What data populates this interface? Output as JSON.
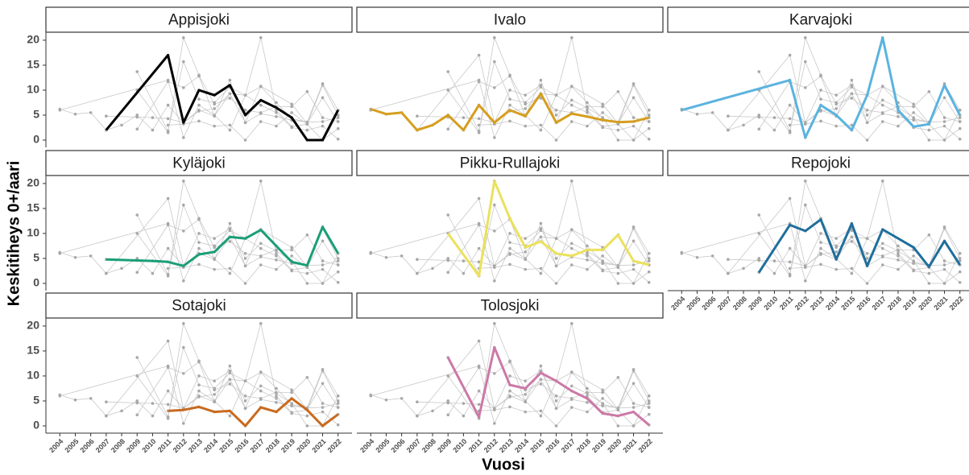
{
  "chart_data": {
    "type": "line",
    "xlabel": "Vuosi",
    "ylabel": "Keskitiheys 0+/aari",
    "xlim": [
      2003.1,
      2022.9
    ],
    "ylim": [
      -1.45,
      21.6
    ],
    "xticks": [
      2004,
      2005,
      2006,
      2007,
      2008,
      2009,
      2010,
      2011,
      2012,
      2013,
      2014,
      2015,
      2016,
      2017,
      2018,
      2019,
      2020,
      2021,
      2022
    ],
    "yticks": [
      0,
      5,
      10,
      15,
      20
    ],
    "context_color": "#c8c8c8",
    "series": [
      {
        "name": "Appisjoki",
        "color": "#000000",
        "x": [
          2007,
          2011,
          2012,
          2013,
          2014,
          2015,
          2016,
          2017,
          2018,
          2019,
          2020,
          2021,
          2022
        ],
        "values": [
          2,
          17,
          3.5,
          10,
          9,
          11,
          5,
          8,
          6.5,
          4.5,
          0,
          0,
          6
        ]
      },
      {
        "name": "Ivalo",
        "color": "#d69e1e",
        "x": [
          2004,
          2005,
          2006,
          2007,
          2008,
          2009,
          2010,
          2011,
          2012,
          2013,
          2014,
          2015,
          2016,
          2017,
          2018,
          2019,
          2020,
          2021,
          2022
        ],
        "values": [
          6.2,
          5.2,
          5.5,
          2,
          3,
          5,
          2,
          7,
          3.5,
          6,
          4.8,
          9.3,
          3.5,
          5.3,
          4.7,
          4,
          3.6,
          3.7,
          4.5
        ]
      },
      {
        "name": "Karvajoki",
        "color": "#5bb3df",
        "x": [
          2004,
          2011,
          2012,
          2013,
          2014,
          2015,
          2016,
          2017,
          2018,
          2019,
          2020,
          2021,
          2022
        ],
        "values": [
          6,
          12,
          0.5,
          7,
          5,
          2,
          9,
          20.5,
          6,
          2.7,
          3.2,
          11,
          5
        ]
      },
      {
        "name": "Kyläjoki",
        "color": "#1a9e77",
        "x": [
          2007,
          2009,
          2010,
          2011,
          2012,
          2013,
          2014,
          2015,
          2016,
          2017,
          2018,
          2019,
          2020,
          2021,
          2022
        ],
        "values": [
          4.8,
          4.6,
          4.5,
          4.3,
          3.5,
          5.8,
          6.3,
          9.3,
          9,
          10.7,
          7.5,
          4.3,
          3.6,
          11.3,
          6
        ]
      },
      {
        "name": "Pikku-Rullajoki",
        "color": "#ebe15c",
        "x": [
          2009,
          2011,
          2012,
          2013,
          2014,
          2015,
          2016,
          2017,
          2018,
          2019,
          2020,
          2021,
          2022
        ],
        "values": [
          10,
          1.5,
          20.5,
          13,
          7.2,
          8.4,
          6,
          5.5,
          6.7,
          6.7,
          9.7,
          4.5,
          3.7
        ]
      },
      {
        "name": "Repojoki",
        "color": "#1f6e9c",
        "x": [
          2009,
          2011,
          2012,
          2013,
          2014,
          2015,
          2016,
          2017,
          2019,
          2020,
          2021,
          2022
        ],
        "values": [
          2.2,
          11.7,
          10.5,
          12.8,
          4.8,
          12,
          3.5,
          10.8,
          7.2,
          3.3,
          8.5,
          3.7
        ]
      },
      {
        "name": "Sotajoki",
        "color": "#c96a1e",
        "x": [
          2011,
          2012,
          2013,
          2014,
          2015,
          2016,
          2017,
          2018,
          2019,
          2020,
          2021,
          2022
        ],
        "values": [
          3,
          3.2,
          3.8,
          2.8,
          3,
          0,
          3.7,
          2.8,
          5.5,
          3.2,
          0,
          2.3
        ]
      },
      {
        "name": "Tolosjoki",
        "color": "#cc79a7",
        "x": [
          2009,
          2011,
          2012,
          2013,
          2014,
          2015,
          2016,
          2017,
          2018,
          2019,
          2020,
          2021,
          2022
        ],
        "values": [
          13.7,
          1.8,
          15.7,
          8.2,
          7.5,
          10.6,
          9,
          7,
          5.5,
          2.5,
          2,
          2.8,
          0.2
        ]
      }
    ]
  }
}
